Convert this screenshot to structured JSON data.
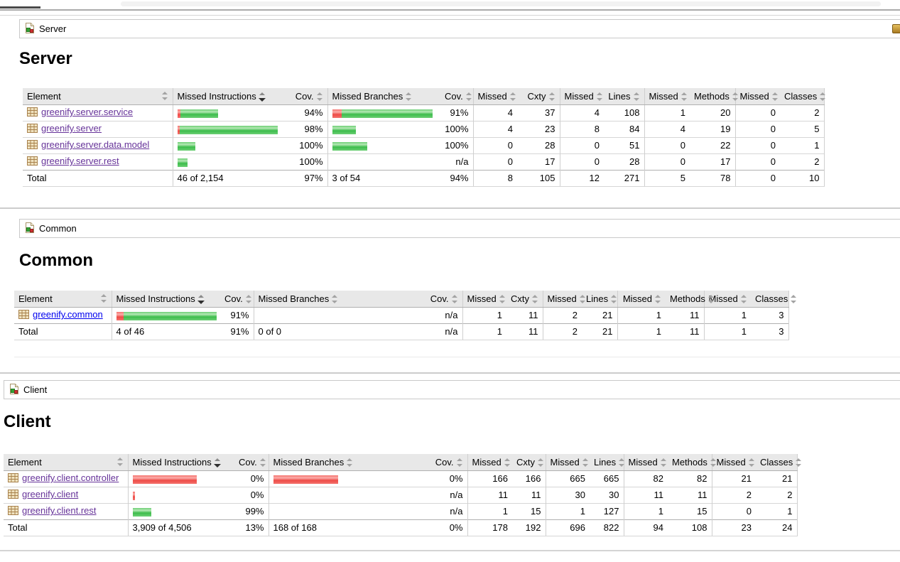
{
  "colors": {
    "link_unvisited": "#0000ee",
    "link_visited": "#663399",
    "bar_red": "#ee4b46",
    "bar_green": "#3cbd4b",
    "header_bg": "#e8e8e8"
  },
  "sections": [
    {
      "breadcrumb": {
        "label": "Server",
        "icon": "report-icon"
      },
      "heading": "Server",
      "has_sessions_icon": true,
      "table": {
        "columns": [
          "Element",
          "Missed Instructions",
          "Cov.",
          "Missed Branches",
          "Cov.",
          "Missed",
          "Cxty",
          "Missed",
          "Lines",
          "Missed",
          "Methods",
          "Missed",
          "Classes"
        ],
        "sorted_column_index": 1,
        "rows": [
          {
            "name": "greenify.server.service",
            "visited": true,
            "instr_bar": {
              "missed": 4,
              "covered": 53
            },
            "instr_cov": "94%",
            "branch_bar": {
              "missed": 13,
              "covered": 128
            },
            "branch_cov": "91%",
            "metrics": [
              "4",
              "37",
              "4",
              "108",
              "1",
              "20",
              "0",
              "2"
            ]
          },
          {
            "name": "greenify.server",
            "visited": true,
            "instr_bar": {
              "missed": 3,
              "covered": 138
            },
            "instr_cov": "98%",
            "branch_bar": {
              "missed": 0,
              "covered": 33
            },
            "branch_cov": "100%",
            "metrics": [
              "4",
              "23",
              "8",
              "84",
              "4",
              "19",
              "0",
              "5"
            ]
          },
          {
            "name": "greenify.server.data.model",
            "visited": true,
            "instr_bar": {
              "missed": 0,
              "covered": 25
            },
            "instr_cov": "100%",
            "branch_bar": {
              "missed": 0,
              "covered": 49
            },
            "branch_cov": "100%",
            "metrics": [
              "0",
              "28",
              "0",
              "51",
              "0",
              "22",
              "0",
              "1"
            ]
          },
          {
            "name": "greenify.server.rest",
            "visited": true,
            "instr_bar": {
              "missed": 0,
              "covered": 14
            },
            "instr_cov": "100%",
            "branch_bar": null,
            "branch_cov": "n/a",
            "metrics": [
              "0",
              "17",
              "0",
              "28",
              "0",
              "17",
              "0",
              "2"
            ]
          }
        ],
        "total": {
          "label": "Total",
          "instr_text": "46 of 2,154",
          "instr_cov": "97%",
          "branch_text": "3 of 54",
          "branch_cov": "94%",
          "metrics": [
            "8",
            "105",
            "12",
            "271",
            "5",
            "78",
            "0",
            "10"
          ]
        }
      }
    },
    {
      "breadcrumb": {
        "label": "Common",
        "icon": "report-icon"
      },
      "heading": "Common",
      "has_sessions_icon": false,
      "table": {
        "columns": [
          "Element",
          "Missed Instructions",
          "Cov.",
          "Missed Branches",
          "Cov.",
          "Missed",
          "Cxty",
          "Missed",
          "Lines",
          "Missed",
          "Methods",
          "Missed",
          "Classes"
        ],
        "sorted_column_index": 1,
        "rows": [
          {
            "name": "greenify.common",
            "visited": false,
            "instr_bar": {
              "missed": 10,
              "covered": 131
            },
            "instr_cov": "91%",
            "branch_bar": null,
            "branch_cov": "n/a",
            "metrics": [
              "1",
              "11",
              "2",
              "21",
              "1",
              "11",
              "1",
              "3"
            ]
          }
        ],
        "total": {
          "label": "Total",
          "instr_text": "4 of 46",
          "instr_cov": "91%",
          "branch_text": "0 of 0",
          "branch_cov": "n/a",
          "metrics": [
            "1",
            "11",
            "2",
            "21",
            "1",
            "11",
            "1",
            "3"
          ]
        }
      }
    },
    {
      "breadcrumb": {
        "label": "Client",
        "icon": "report-icon"
      },
      "heading": "Client",
      "has_sessions_icon": false,
      "table": {
        "columns": [
          "Element",
          "Missed Instructions",
          "Cov.",
          "Missed Branches",
          "Cov.",
          "Missed",
          "Cxty",
          "Missed",
          "Lines",
          "Missed",
          "Methods",
          "Missed",
          "Classes"
        ],
        "sorted_column_index": 1,
        "rows": [
          {
            "name": "greenify.client.controller",
            "visited": true,
            "instr_bar": {
              "missed": 90,
              "covered": 0
            },
            "instr_cov": "0%",
            "branch_bar": {
              "missed": 91,
              "covered": 0
            },
            "branch_cov": "0%",
            "metrics": [
              "166",
              "166",
              "665",
              "665",
              "82",
              "82",
              "21",
              "21"
            ]
          },
          {
            "name": "greenify.client",
            "visited": true,
            "instr_bar": {
              "missed": 3,
              "covered": 0
            },
            "instr_cov": "0%",
            "branch_bar": null,
            "branch_cov": "n/a",
            "metrics": [
              "11",
              "11",
              "30",
              "30",
              "11",
              "11",
              "2",
              "2"
            ]
          },
          {
            "name": "greenify.client.rest",
            "visited": true,
            "instr_bar": {
              "missed": 0,
              "covered": 26
            },
            "instr_cov": "99%",
            "branch_bar": null,
            "branch_cov": "n/a",
            "metrics": [
              "1",
              "15",
              "1",
              "127",
              "1",
              "15",
              "0",
              "1"
            ]
          }
        ],
        "total": {
          "label": "Total",
          "instr_text": "3,909 of 4,506",
          "instr_cov": "13%",
          "branch_text": "168 of 168",
          "branch_cov": "0%",
          "metrics": [
            "178",
            "192",
            "696",
            "822",
            "94",
            "108",
            "23",
            "24"
          ]
        }
      }
    }
  ]
}
